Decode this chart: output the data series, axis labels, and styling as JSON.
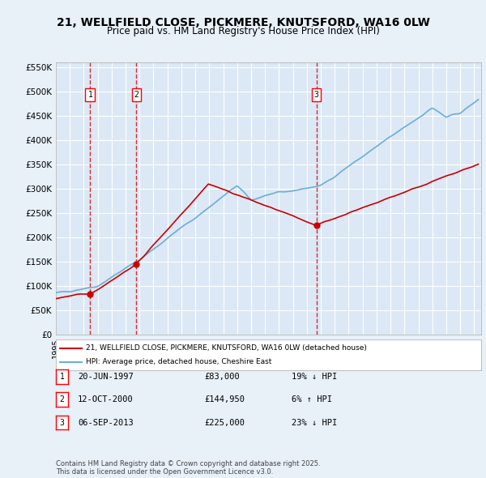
{
  "title_line1": "21, WELLFIELD CLOSE, PICKMERE, KNUTSFORD, WA16 0LW",
  "title_line2": "Price paid vs. HM Land Registry's House Price Index (HPI)",
  "bg_color": "#e8f0f8",
  "plot_bg_color": "#dce8f5",
  "grid_color": "#ffffff",
  "ylabel_ticks": [
    "£0",
    "£50K",
    "£100K",
    "£150K",
    "£200K",
    "£250K",
    "£300K",
    "£350K",
    "£400K",
    "£450K",
    "£500K",
    "£550K"
  ],
  "ytick_values": [
    0,
    50000,
    100000,
    150000,
    200000,
    250000,
    300000,
    350000,
    400000,
    450000,
    500000,
    550000
  ],
  "xmin": 1995,
  "xmax": 2025.5,
  "ymin": 0,
  "ymax": 560000,
  "sale_dates": [
    1997.46,
    2000.78,
    2013.68
  ],
  "sale_prices": [
    83000,
    144950,
    225000
  ],
  "sale_labels": [
    "1",
    "2",
    "3"
  ],
  "legend_line1": "21, WELLFIELD CLOSE, PICKMERE, KNUTSFORD, WA16 0LW (detached house)",
  "legend_line2": "HPI: Average price, detached house, Cheshire East",
  "table_data": [
    {
      "num": "1",
      "date": "20-JUN-1997",
      "price": "£83,000",
      "change": "19% ↓ HPI"
    },
    {
      "num": "2",
      "date": "12-OCT-2000",
      "price": "£144,950",
      "change": "6% ↑ HPI"
    },
    {
      "num": "3",
      "date": "06-SEP-2013",
      "price": "£225,000",
      "change": "23% ↓ HPI"
    }
  ],
  "footer": "Contains HM Land Registry data © Crown copyright and database right 2025.\nThis data is licensed under the Open Government Licence v3.0.",
  "hpi_color": "#6baed6",
  "sale_color": "#cc0000",
  "dashed_color": "#cc0000"
}
